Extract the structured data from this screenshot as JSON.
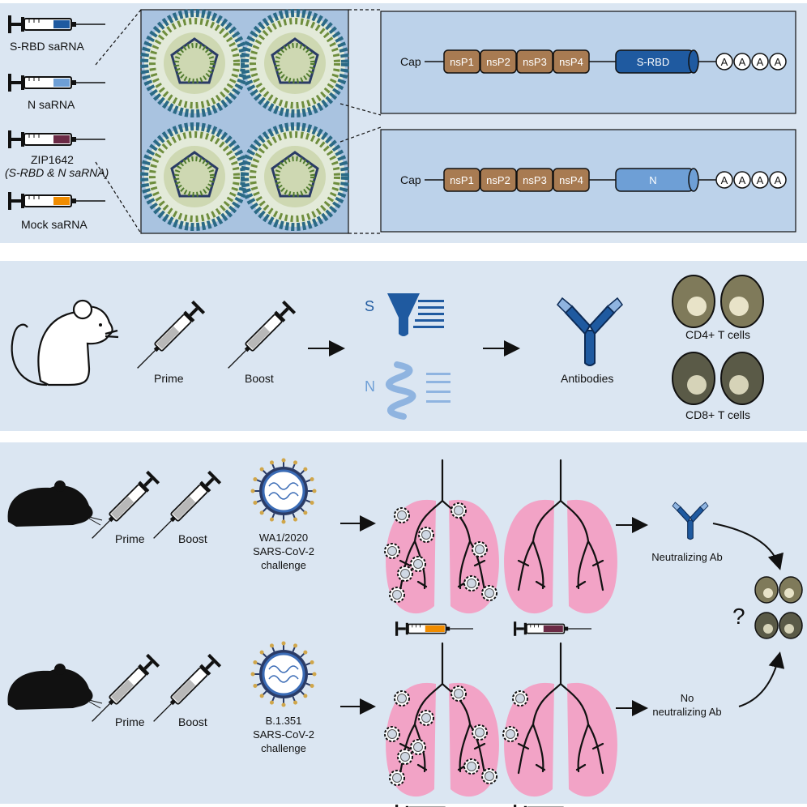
{
  "colors": {
    "panel_bg": "#dbe6f2",
    "construct_box": "#bcd2ea",
    "nsp_fill": "#a87b52",
    "srbd_fill": "#1f5aa0",
    "n_fill": "#6e9fd6",
    "zip_fill": "#6b2a45",
    "mock_fill": "#f08c00",
    "lung_fill": "#f2a3c6",
    "antibody": "#1f5aa0",
    "cd4_cell": "#7f7a5a",
    "cd8_cell": "#5a5a47"
  },
  "top": {
    "syringes": [
      {
        "label": "S-RBD saRNA",
        "fill_color": "#1f5aa0"
      },
      {
        "label": "N saRNA",
        "fill_color": "#6e9fd6"
      },
      {
        "label": "ZIP1642",
        "sublabel": "(S-RBD & N saRNA)",
        "fill_color": "#6b2a45"
      },
      {
        "label": "Mock saRNA",
        "fill_color": "#f08c00"
      }
    ],
    "constructs": [
      {
        "cap": "Cap",
        "genes": [
          "nsP1",
          "nsP2",
          "nsP3",
          "nsP4"
        ],
        "insert": "S-RBD",
        "polya": [
          "A",
          "A",
          "A",
          "A"
        ]
      },
      {
        "cap": "Cap",
        "genes": [
          "nsP1",
          "nsP2",
          "nsP3",
          "nsP4"
        ],
        "insert": "N",
        "polya": [
          "A",
          "A",
          "A",
          "A"
        ]
      }
    ]
  },
  "middle": {
    "prime_label": "Prime",
    "boost_label": "Boost",
    "s_label": "S",
    "n_label": "N",
    "antibodies_label": "Antibodies",
    "cd4_label": "CD4+ T cells",
    "cd8_label": "CD8+ T cells"
  },
  "bottom": {
    "rows": [
      {
        "prime_label": "Prime",
        "boost_label": "Boost",
        "challenge_lines": [
          "WA1/2020",
          "SARS-CoV-2",
          "challenge"
        ],
        "outcome_lines": [
          "Neutralizing Ab"
        ]
      },
      {
        "prime_label": "Prime",
        "boost_label": "Boost",
        "challenge_lines": [
          "B.1.351",
          "SARS-CoV-2",
          "challenge"
        ],
        "outcome_lines": [
          "No",
          "neutralizing Ab"
        ]
      }
    ],
    "question_mark": "?"
  }
}
